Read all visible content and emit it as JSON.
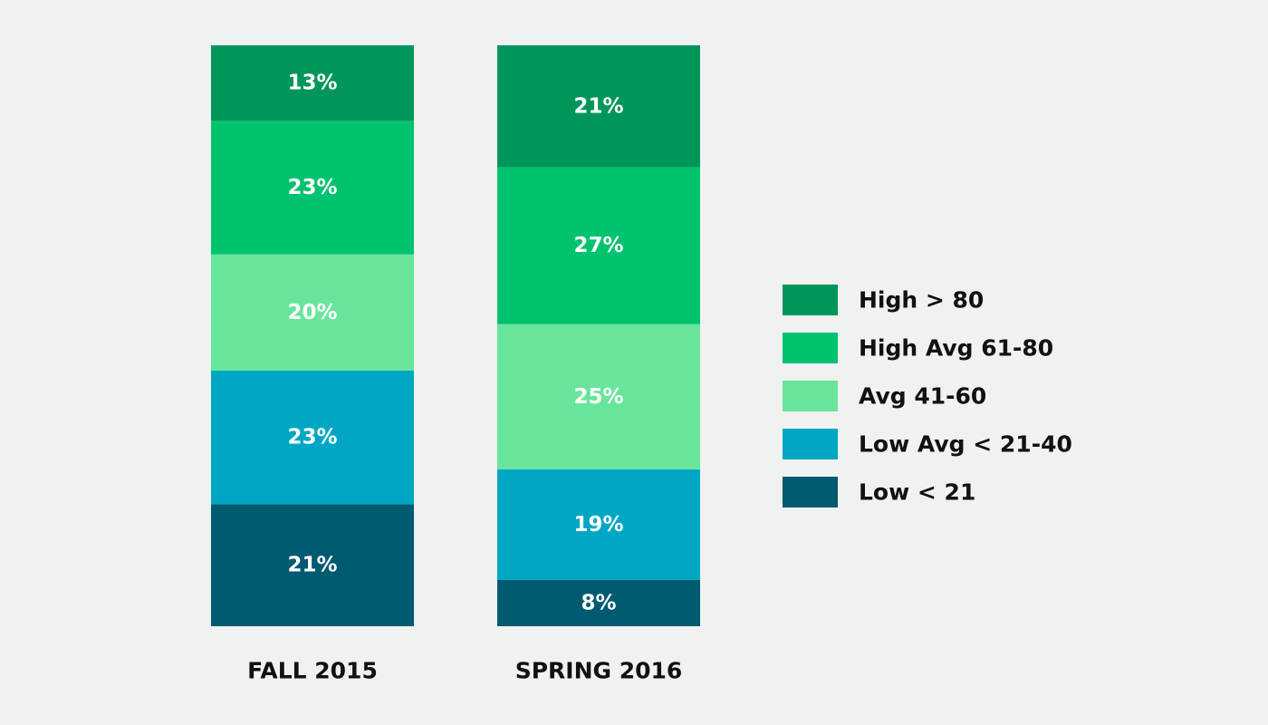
{
  "chart_data": {
    "type": "bar",
    "stacked": true,
    "normalized": true,
    "title": "",
    "xlabel": "",
    "ylabel": "",
    "categories": [
      "FALL 2015",
      "SPRING 2016"
    ],
    "stack_order": "bottom-to-top",
    "series": [
      {
        "name": "Low < 21",
        "values": [
          21,
          8
        ],
        "labels": [
          "21%",
          "8%"
        ],
        "color": "#005a70"
      },
      {
        "name": "Low Avg < 21-40",
        "values": [
          23,
          19
        ],
        "labels": [
          "23%",
          "19%"
        ],
        "color": "#00a7c4"
      },
      {
        "name": "Avg 41-60",
        "values": [
          20,
          25
        ],
        "labels": [
          "20%",
          "25%"
        ],
        "color": "#69e59b"
      },
      {
        "name": "High Avg 61-80",
        "values": [
          23,
          27
        ],
        "labels": [
          "23%",
          "27%"
        ],
        "color": "#00c36f"
      },
      {
        "name": "High > 80",
        "values": [
          13,
          21
        ],
        "labels": [
          "13%",
          "21%"
        ],
        "color": "#00965a"
      }
    ],
    "legend": {
      "position": "right",
      "order": [
        "High > 80",
        "High Avg 61-80",
        "Avg 41-60",
        "Low Avg < 21-40",
        "Low < 21"
      ]
    },
    "grid": false,
    "background": "#f0f2f1"
  }
}
